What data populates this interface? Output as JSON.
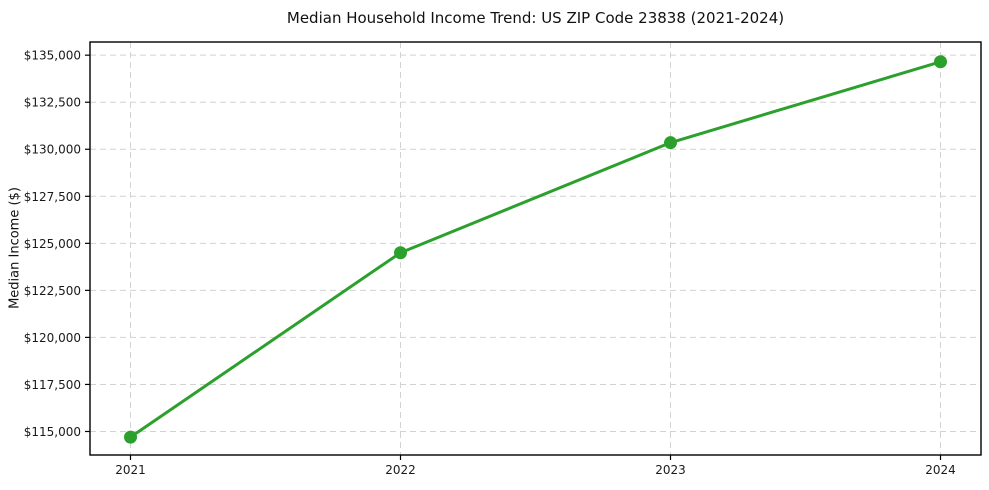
{
  "chart_data": {
    "type": "line",
    "title": "Median Household Income Trend: US ZIP Code 23838 (2021-2024)",
    "xlabel": "",
    "ylabel": "Median Income ($)",
    "categories": [
      "2021",
      "2022",
      "2023",
      "2024"
    ],
    "x": [
      2021,
      2022,
      2023,
      2024
    ],
    "series": [
      {
        "name": "Median Household Income",
        "values": [
          114700,
          124500,
          130350,
          134650
        ]
      }
    ],
    "x_tick_labels": [
      "2021",
      "2022",
      "2023",
      "2024"
    ],
    "y_ticks": [
      115000,
      117500,
      120000,
      122500,
      125000,
      127500,
      130000,
      132500,
      135000
    ],
    "y_tick_labels": [
      "$115,000",
      "$117,500",
      "$120,000",
      "$122,500",
      "$125,000",
      "$127,500",
      "$130,000",
      "$132,500",
      "$135,000"
    ],
    "xlim": [
      2020.85,
      2024.15
    ],
    "ylim": [
      113750,
      135700
    ],
    "grid": "dashed",
    "grid_color": "#d2d2d2",
    "legend": "none",
    "line_color": "#2ca02c",
    "marker": "circle",
    "axis_color": "#000000",
    "tick_label_color": "#1a1a1a"
  }
}
